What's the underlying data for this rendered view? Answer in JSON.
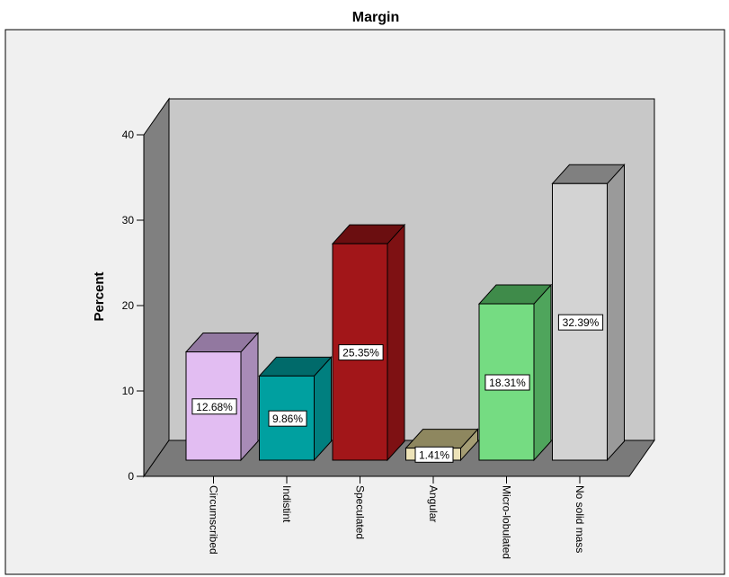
{
  "chart_data": {
    "type": "bar",
    "title": "Margin",
    "xlabel": "",
    "ylabel": "Percent",
    "ylim": [
      0,
      40
    ],
    "yticks": [
      0,
      10,
      20,
      30,
      40
    ],
    "grid": false,
    "categories": [
      "Circumscribed",
      "Indistint",
      "Speculated",
      "Angular",
      "Micro-lobulated",
      "No solid mass"
    ],
    "values": [
      12.68,
      9.86,
      25.35,
      1.41,
      18.31,
      32.39
    ],
    "value_labels": [
      "12.68%",
      "9.86%",
      "25.35%",
      "1.41%",
      "18.31%",
      "32.39%"
    ],
    "bar_colors": [
      {
        "front": "#E2BDF2",
        "top": "#9278A0",
        "side": "#A88BB7"
      },
      {
        "front": "#00A0A0",
        "top": "#006A6A",
        "side": "#007F7F"
      },
      {
        "front": "#A21619",
        "top": "#6B0E10",
        "side": "#7E1113"
      },
      {
        "front": "#EDE3B8",
        "top": "#8E875F",
        "side": "#A59D74"
      },
      {
        "front": "#75DC82",
        "top": "#3F8B4A",
        "side": "#4FA55C"
      },
      {
        "front": "#D3D3D3",
        "top": "#808080",
        "side": "#9A9A9A"
      }
    ],
    "colors": {
      "back_wall": "#C8C8C8",
      "side_wall": "#808080",
      "floor": "#7A7A7A",
      "plot_background": "#F0F0F0"
    }
  }
}
